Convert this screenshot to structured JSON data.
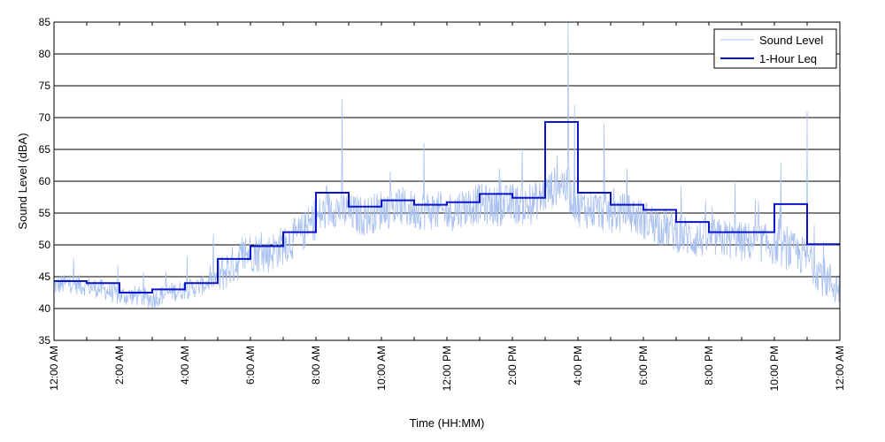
{
  "chart_data": {
    "type": "line",
    "xlabel": "Time (HH:MM)",
    "ylabel": "Sound Level (dBA)",
    "ylim": [
      35,
      85
    ],
    "yticks": [
      35,
      40,
      45,
      50,
      55,
      60,
      65,
      70,
      75,
      80,
      85
    ],
    "x_unit": "hours",
    "xlim": [
      0,
      24
    ],
    "xtick_labels": [
      "12:00 AM",
      "2:00 AM",
      "4:00 AM",
      "6:00 AM",
      "8:00 AM",
      "10:00 AM",
      "12:00 PM",
      "2:00 PM",
      "4:00 PM",
      "6:00 PM",
      "8:00 PM",
      "10:00 PM",
      "12:00 AM"
    ],
    "grid": "horizontal",
    "legend_position": "top-right",
    "series": [
      {
        "name": "Sound Level",
        "color": "#a8c0f0",
        "profile_x": [
          0,
          0.5,
          1,
          1.5,
          2,
          2.5,
          3,
          3.5,
          4,
          4.5,
          5,
          5.5,
          6,
          6.5,
          7,
          7.5,
          8,
          8.5,
          9,
          9.5,
          10,
          10.5,
          11,
          11.5,
          12,
          12.5,
          13,
          13.5,
          14,
          14.5,
          15,
          15.5,
          16,
          16.5,
          17,
          17.5,
          18,
          18.5,
          19,
          19.5,
          20,
          20.5,
          21,
          21.5,
          22,
          22.5,
          23,
          23.5,
          24
        ],
        "profile_y": [
          43.5,
          44,
          43.5,
          43,
          42,
          42,
          41.5,
          42.5,
          43,
          43.5,
          45,
          47,
          49,
          48.5,
          50,
          51.5,
          54,
          56,
          55,
          54.5,
          55.5,
          56,
          55.5,
          55.5,
          55,
          56,
          56.5,
          56,
          56.5,
          56,
          58,
          60,
          56,
          55.5,
          55,
          55,
          54,
          53,
          52,
          51,
          51,
          51,
          50.5,
          50.5,
          50,
          49,
          48,
          45,
          43
        ],
        "peaks": [
          [
            8.8,
            73
          ],
          [
            11.3,
            66
          ],
          [
            13.6,
            62
          ],
          [
            14.3,
            65
          ],
          [
            15.7,
            85
          ],
          [
            15.9,
            72
          ],
          [
            16.8,
            69
          ],
          [
            17.5,
            62
          ],
          [
            20.8,
            60
          ],
          [
            22.2,
            63
          ],
          [
            23.0,
            71
          ]
        ]
      },
      {
        "name": "1-Hour Leq",
        "color": "#0a14c8",
        "step_start_hours": [
          0,
          1,
          2,
          3,
          4,
          5,
          6,
          7,
          8,
          9,
          10,
          11,
          12,
          13,
          14,
          15,
          16,
          17,
          18,
          19,
          20,
          21,
          22,
          23
        ],
        "values": [
          44.3,
          44.0,
          42.5,
          43.0,
          44.0,
          47.8,
          49.8,
          52.0,
          58.2,
          56.0,
          57.0,
          56.3,
          56.7,
          58.0,
          57.4,
          69.3,
          58.2,
          56.3,
          55.5,
          53.6,
          52.0,
          52.0,
          56.4,
          50.1
        ]
      }
    ]
  }
}
